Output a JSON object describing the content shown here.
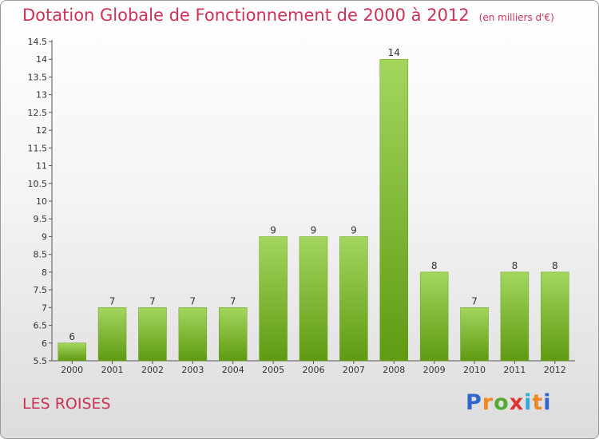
{
  "title": "Dotation Globale de Fonctionnement de 2000 à 2012",
  "unit": "(en milliers d'€)",
  "commune": "LES ROISES",
  "logo": {
    "letters": [
      "P",
      "r",
      "o",
      "x",
      "i",
      "t",
      "i"
    ],
    "colors": [
      "#3366cc",
      "#ee8822",
      "#55aa33",
      "#dd3333",
      "#33aadd",
      "#ee8822",
      "#3366cc"
    ]
  },
  "chart_data": {
    "type": "bar",
    "title": "Dotation Globale de Fonctionnement de 2000 à 2012",
    "subtitle": "(en milliers d'€)",
    "categories": [
      "2000",
      "2001",
      "2002",
      "2003",
      "2004",
      "2005",
      "2006",
      "2007",
      "2008",
      "2009",
      "2010",
      "2011",
      "2012"
    ],
    "values": [
      6,
      7,
      7,
      7,
      7,
      9,
      9,
      9,
      14,
      8,
      7,
      8,
      8
    ],
    "ylim": [
      5.5,
      14.5
    ],
    "yticks": [
      5.5,
      6,
      6.5,
      7,
      7.5,
      8,
      8.5,
      9,
      9.5,
      10,
      10.5,
      11,
      11.5,
      12,
      12.5,
      13,
      13.5,
      14,
      14.5
    ],
    "ytick_labels": [
      "5.5",
      "6",
      "6.5",
      "7",
      "7.5",
      "8",
      "8.5",
      "9",
      "9.5",
      "10",
      "10.5",
      "11",
      "11.5",
      "12",
      "12.5",
      "13",
      "13.5",
      "14",
      "14.5"
    ],
    "grid": false,
    "bar_color": "#7dbb2a"
  }
}
